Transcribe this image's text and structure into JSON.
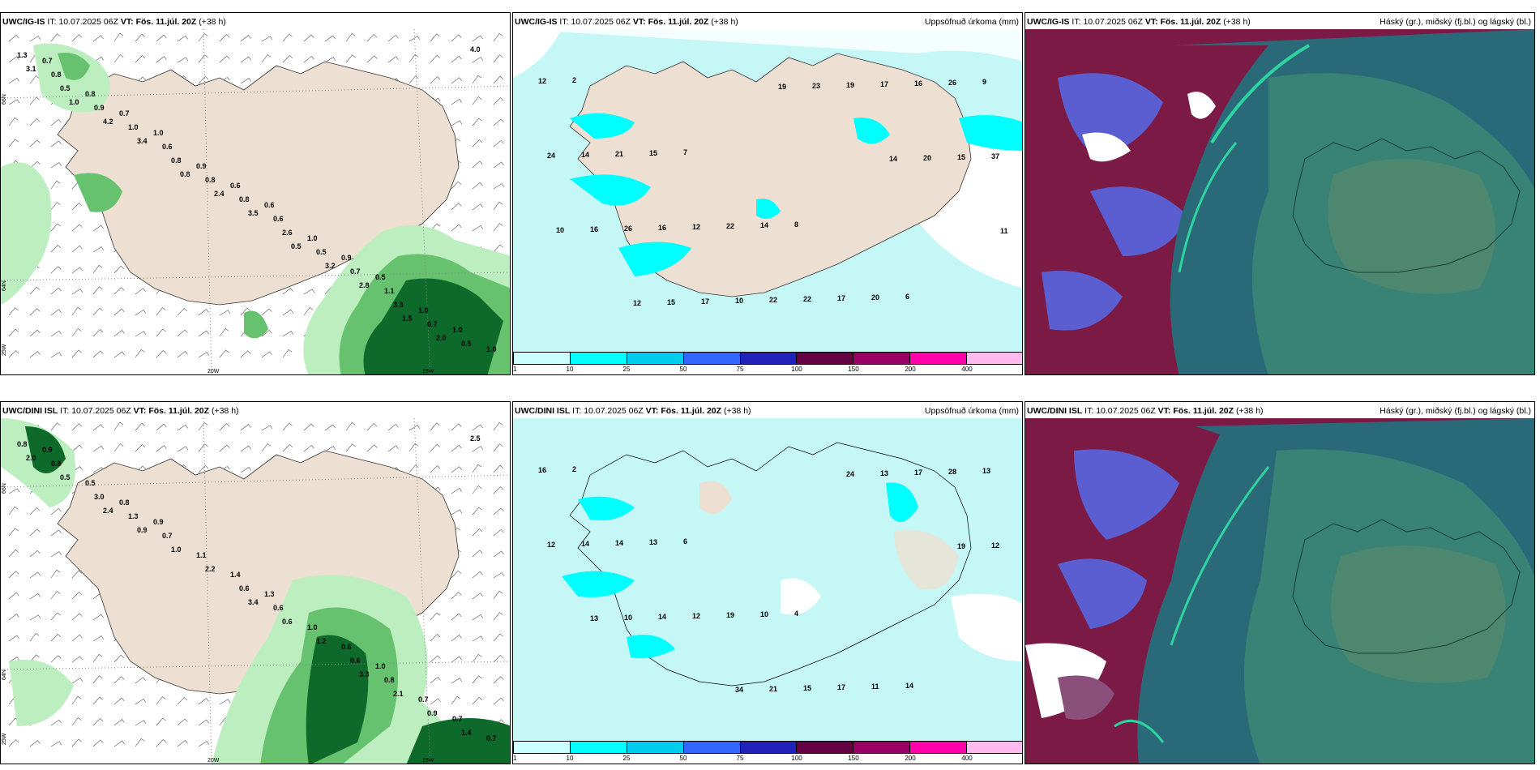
{
  "rows": [
    {
      "model": "UWC/IG-IS",
      "panels": [
        {
          "type": "wind",
          "field_title": "",
          "labels": [
            "0.7",
            "1.0",
            "0.6",
            "0.5",
            "1.0",
            "0.7",
            "0.6",
            "0.9",
            "1.0",
            "0.8",
            "0.9",
            "1.0",
            "1.0",
            "0.8",
            "0.6",
            "0.6",
            "1.1",
            "1.3",
            "1.0",
            "0.8",
            "0.7",
            "0.5",
            "0.9",
            "0.8",
            "0.5",
            "0.7",
            "0.5",
            "0.8",
            "2.6",
            "3.3",
            "3.1",
            "3.4",
            "3.5",
            "2.8",
            "4.0",
            "4.2",
            "2.4",
            "3.2",
            "2.0",
            "1.0",
            "0.8",
            "0.5",
            "1.5"
          ]
        },
        {
          "type": "precip",
          "field_title": "Uppsöfnuð úrkoma (mm)",
          "labels": [
            "2",
            "7",
            "8",
            "6",
            "12",
            "15",
            "14",
            "20",
            "9",
            "21",
            "22",
            "17",
            "26",
            "14",
            "12",
            "22",
            "16",
            "24",
            "16",
            "22",
            "17",
            "37",
            "26",
            "10",
            "19",
            "15",
            "16",
            "17",
            "23",
            "20",
            "10",
            "15",
            "19",
            "14",
            "11",
            "12"
          ]
        },
        {
          "type": "cloud",
          "field_title": "Háský (gr.), miðský (fj.bl.) og lágský (bl.)"
        }
      ]
    },
    {
      "model": "UWC/DINI ISL",
      "panels": [
        {
          "type": "wind",
          "field_title": "",
          "labels": [
            "0.9",
            "0.9",
            "1.3",
            "1.0",
            "0.7",
            "0.8",
            "1.4",
            "0.6",
            "0.7",
            "0.5",
            "1.1",
            "1.0",
            "0.7",
            "0.8",
            "0.7",
            "0.6",
            "0.8",
            "0.8",
            "1.3",
            "0.6",
            "0.6",
            "1.4",
            "3.0",
            "2.2",
            "1.2",
            "0.9",
            "0.5",
            "1.0",
            "0.6",
            "2.1",
            "2.0",
            "0.9",
            "3.4",
            "3.3",
            "2.5",
            "2.4"
          ]
        },
        {
          "type": "precip",
          "field_title": "Uppsöfnuð úrkoma (mm)",
          "labels": [
            "2",
            "6",
            "4",
            "14",
            "16",
            "13",
            "10",
            "11",
            "13",
            "14",
            "19",
            "17",
            "28",
            "14",
            "12",
            "15",
            "17",
            "12",
            "14",
            "21",
            "13",
            "12",
            "10",
            "34",
            "24",
            "19",
            "13"
          ]
        },
        {
          "type": "cloud",
          "field_title": "Háský (gr.), miðský (fj.bl.) og lágský (bl.)"
        }
      ]
    }
  ],
  "issue_time_label": "IT:",
  "issue_time": "10.07.2025 06Z",
  "valid_time_label": "VT:",
  "valid_time": "Fös. 11.júl. 20Z",
  "lead_time": "(+38 h)",
  "axis_labels": {
    "lat66": "66N",
    "lat64": "64N",
    "lon20": "20W",
    "lon15": "15W",
    "lon25": "25W"
  },
  "colorbar": {
    "colors": [
      "#ccffff",
      "#00ffff",
      "#00ccee",
      "#3366ff",
      "#2222bb",
      "#660044",
      "#990066",
      "#ff00aa",
      "#ffbbee"
    ],
    "ticks": [
      "1",
      "10",
      "25",
      "50",
      "75",
      "100",
      "150",
      "200",
      "400"
    ]
  },
  "colors": {
    "land": "#ede0d2",
    "sea": "#ffffff",
    "precip_light": "#c6f7f7",
    "green_light": "#bdeec0",
    "green_mid": "#66c26e",
    "green_dark": "#0e6a2a",
    "cloud_high": "#7a1a45",
    "cloud_mid": "#5a5ed0",
    "cloud_low": "#2a6a78",
    "cloud_low_green": "#3f8f74"
  }
}
